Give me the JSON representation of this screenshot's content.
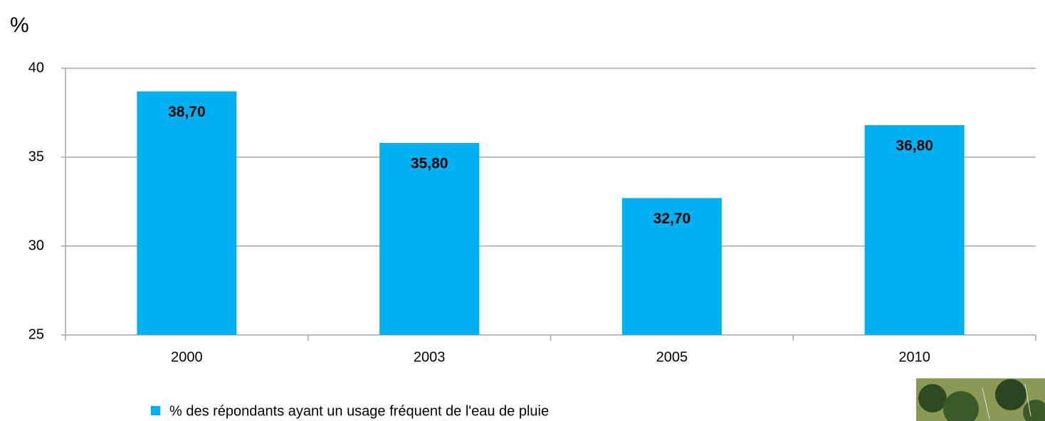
{
  "chart_data": {
    "type": "bar",
    "y_label": "%",
    "categories": [
      "2000",
      "2003",
      "2005",
      "2010"
    ],
    "series": [
      {
        "name": "% des répondants ayant un usage fréquent de l'eau de pluie",
        "color": "#00b0f0",
        "values": [
          38.7,
          35.8,
          32.7,
          36.8
        ],
        "value_labels": [
          "38,70",
          "35,80",
          "32,70",
          "36,80"
        ]
      }
    ],
    "ylim": [
      25,
      40
    ],
    "yticks": [
      25,
      30,
      35,
      40
    ],
    "grid": true
  }
}
